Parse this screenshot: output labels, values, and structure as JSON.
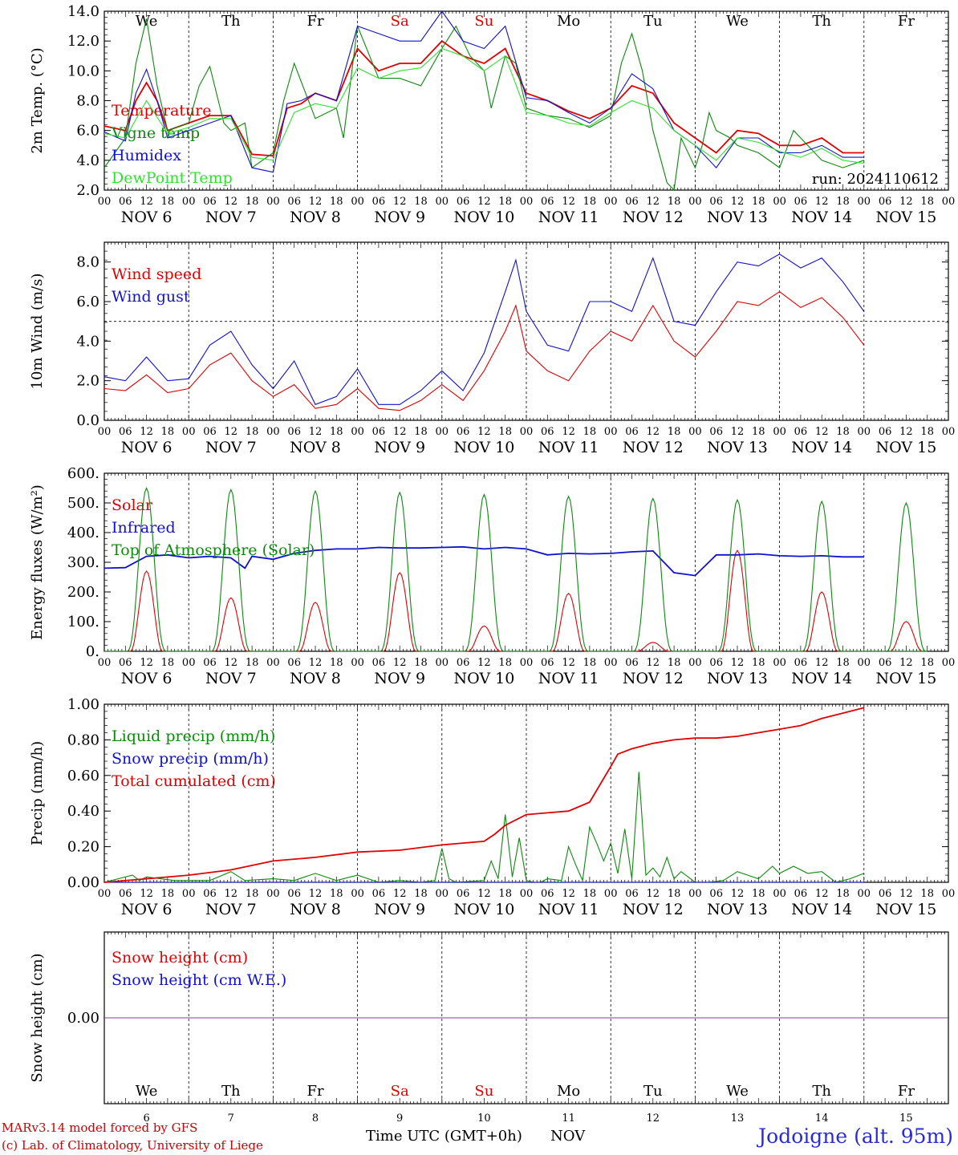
{
  "run_label": "run: 2024110612",
  "days": {
    "weekday_labels": [
      "We",
      "Th",
      "Fr",
      "Sa",
      "Su",
      "Mo",
      "Tu",
      "We",
      "Th",
      "Fr"
    ],
    "weekend_color": "#e00000",
    "date_labels": [
      "NOV 6",
      "NOV 7",
      "NOV 8",
      "NOV 9",
      "NOV 10",
      "NOV 11",
      "NOV 12",
      "NOV 13",
      "NOV 14",
      "NOV 15"
    ],
    "day_numbers": [
      "6",
      "7",
      "8",
      "9",
      "10",
      "11",
      "12",
      "13",
      "14",
      "15"
    ],
    "hour_ticks": [
      "00",
      "06",
      "12",
      "18"
    ]
  },
  "footer": {
    "model_line": "MARv3.14 model forced by GFS",
    "copyright_line": "(c) Lab. of Climatology, University of Liege",
    "xlabel": "Time UTC (GMT+0h)",
    "month": "NOV",
    "station": "Jodoigne (alt. 95m)"
  },
  "chart_data": [
    {
      "type": "line",
      "ylabel": "2m Temp. (°C)",
      "ylim": [
        2.0,
        14.0
      ],
      "yticks": [
        "2.0",
        "4.0",
        "6.0",
        "8.0",
        "10.0",
        "12.0",
        "14.0"
      ],
      "x_unit": "hours since Nov 6 00 UTC",
      "series": [
        {
          "name": "Temperature",
          "color": "#e00000",
          "x": [
            0,
            6,
            9,
            12,
            15,
            18,
            24,
            30,
            36,
            42,
            48,
            52,
            56,
            60,
            66,
            72,
            78,
            84,
            90,
            96,
            102,
            108,
            114,
            120,
            126,
            132,
            138,
            144,
            150,
            156,
            162,
            168,
            174,
            180,
            186,
            192,
            198,
            204,
            210,
            216
          ],
          "y": [
            6.3,
            6.0,
            8.0,
            9.2,
            8.0,
            6.0,
            6.5,
            7.0,
            7.0,
            4.4,
            4.3,
            7.5,
            7.8,
            8.5,
            8.0,
            11.5,
            10.0,
            10.5,
            10.5,
            12.0,
            11.0,
            10.5,
            11.5,
            8.5,
            8.0,
            7.3,
            6.8,
            7.5,
            9.0,
            8.5,
            6.5,
            5.5,
            4.5,
            6.0,
            5.8,
            5.0,
            5.0,
            5.5,
            4.5,
            4.5
          ]
        },
        {
          "name": "Vigne temp",
          "color": "#0a8a0a",
          "x": [
            0,
            6,
            9,
            12,
            15,
            18,
            24,
            27,
            30,
            34,
            36,
            40,
            42,
            48,
            51,
            54,
            60,
            66,
            68,
            72,
            78,
            84,
            90,
            96,
            100,
            104,
            108,
            110,
            114,
            117,
            120,
            126,
            132,
            138,
            144,
            147,
            150,
            153,
            156,
            160,
            162,
            164,
            168,
            170,
            172,
            174,
            178,
            180,
            186,
            192,
            196,
            198,
            204,
            210,
            216
          ],
          "y": [
            3.5,
            5.5,
            10.5,
            13.5,
            9.0,
            6.0,
            6.5,
            9.0,
            10.3,
            6.5,
            6.0,
            6.5,
            3.5,
            4.5,
            8.0,
            10.5,
            6.8,
            7.5,
            5.5,
            13.0,
            9.5,
            9.5,
            9.0,
            11.5,
            13.0,
            11.0,
            10.0,
            7.5,
            11.0,
            10.5,
            7.5,
            7.0,
            6.8,
            6.2,
            7.0,
            10.5,
            12.5,
            10.0,
            6.0,
            2.5,
            2.0,
            5.5,
            3.5,
            5.0,
            7.2,
            6.0,
            5.5,
            5.0,
            4.5,
            3.5,
            6.0,
            5.5,
            4.0,
            3.5,
            4.0
          ]
        },
        {
          "name": "Humidex",
          "color": "#1010d0",
          "x": [
            0,
            6,
            9,
            12,
            15,
            18,
            24,
            30,
            36,
            42,
            48,
            52,
            56,
            60,
            66,
            72,
            78,
            84,
            90,
            96,
            102,
            108,
            114,
            120,
            126,
            132,
            138,
            144,
            150,
            156,
            162,
            168,
            174,
            180,
            186,
            192,
            198,
            204,
            210,
            216
          ],
          "y": [
            5.9,
            5.3,
            8.5,
            10.1,
            8.0,
            5.5,
            6.0,
            6.5,
            7.0,
            3.5,
            3.2,
            7.8,
            8.0,
            8.5,
            8.0,
            13.0,
            12.5,
            12.0,
            12.0,
            14.0,
            12.0,
            11.5,
            13.0,
            8.2,
            8.0,
            7.2,
            6.5,
            7.5,
            9.8,
            8.8,
            6.0,
            5.0,
            3.5,
            5.5,
            5.5,
            4.5,
            4.5,
            5.0,
            4.2,
            4.2
          ]
        },
        {
          "name": "DewPoint Temp",
          "color": "#30e030",
          "x": [
            0,
            6,
            12,
            18,
            24,
            30,
            36,
            42,
            48,
            54,
            60,
            66,
            72,
            78,
            84,
            90,
            96,
            102,
            108,
            114,
            120,
            126,
            132,
            138,
            144,
            150,
            156,
            162,
            168,
            174,
            180,
            186,
            192,
            198,
            204,
            210,
            216
          ],
          "y": [
            5.8,
            5.5,
            8.0,
            5.8,
            6.2,
            6.8,
            6.8,
            4.2,
            4.0,
            7.2,
            7.8,
            7.5,
            10.2,
            9.5,
            10.0,
            10.2,
            11.5,
            11.0,
            10.0,
            11.0,
            7.2,
            7.0,
            6.5,
            6.3,
            7.2,
            8.0,
            7.5,
            6.0,
            5.0,
            4.0,
            5.5,
            5.2,
            4.6,
            4.2,
            4.8,
            4.0,
            3.8
          ]
        }
      ]
    },
    {
      "type": "line",
      "ylabel": "10m Wind (m/s)",
      "ylim": [
        0.0,
        9.0
      ],
      "yticks": [
        "0.0",
        "2.0",
        "4.0",
        "6.0",
        "8.0"
      ],
      "reference_line": 5.0,
      "series": [
        {
          "name": "Wind speed",
          "color": "#e00000",
          "x": [
            0,
            6,
            12,
            18,
            24,
            30,
            36,
            42,
            48,
            54,
            60,
            66,
            72,
            78,
            84,
            90,
            96,
            102,
            108,
            114,
            117,
            120,
            126,
            132,
            138,
            144,
            150,
            156,
            162,
            168,
            174,
            180,
            186,
            192,
            198,
            204,
            210,
            216
          ],
          "y": [
            1.6,
            1.5,
            2.3,
            1.4,
            1.6,
            2.8,
            3.4,
            2.0,
            1.2,
            1.8,
            0.6,
            0.8,
            1.6,
            0.6,
            0.5,
            1.0,
            1.8,
            1.0,
            2.5,
            4.5,
            5.8,
            3.5,
            2.5,
            2.0,
            3.5,
            4.5,
            4.0,
            5.8,
            4.0,
            3.2,
            4.5,
            6.0,
            5.8,
            6.5,
            5.7,
            6.2,
            5.2,
            3.8
          ]
        },
        {
          "name": "Wind gust",
          "color": "#1010d0",
          "x": [
            0,
            6,
            12,
            18,
            24,
            30,
            36,
            42,
            48,
            54,
            60,
            66,
            72,
            78,
            84,
            90,
            96,
            102,
            108,
            114,
            117,
            120,
            126,
            132,
            138,
            144,
            150,
            156,
            162,
            168,
            174,
            180,
            186,
            192,
            198,
            204,
            210,
            216
          ],
          "y": [
            2.2,
            2.0,
            3.2,
            2.0,
            2.1,
            3.8,
            4.5,
            2.8,
            1.6,
            3.0,
            0.8,
            1.2,
            2.6,
            0.8,
            0.8,
            1.5,
            2.5,
            1.5,
            3.4,
            6.5,
            8.1,
            5.5,
            3.8,
            3.5,
            6.0,
            6.0,
            5.5,
            8.2,
            5.0,
            4.8,
            6.5,
            8.0,
            7.8,
            8.4,
            7.7,
            8.2,
            7.0,
            5.5
          ]
        }
      ]
    },
    {
      "type": "line",
      "ylabel": "Energy fluxes (W/m²)",
      "ylim": [
        0,
        600
      ],
      "yticks": [
        "0.",
        "100.",
        "200.",
        "300.",
        "400.",
        "500.",
        "600."
      ],
      "series": [
        {
          "name": "Solar",
          "color": "#e00000",
          "peaks": [
            270,
            180,
            165,
            265,
            85,
            195,
            30,
            340,
            200,
            100
          ]
        },
        {
          "name": "Infrared",
          "color": "#1010d0",
          "x": [
            0,
            6,
            12,
            18,
            24,
            30,
            36,
            40,
            42,
            48,
            54,
            60,
            66,
            72,
            78,
            84,
            90,
            96,
            102,
            108,
            114,
            120,
            126,
            132,
            138,
            144,
            150,
            156,
            162,
            168,
            174,
            180,
            186,
            192,
            198,
            204,
            210,
            216
          ],
          "y": [
            280,
            282,
            320,
            325,
            315,
            320,
            315,
            280,
            320,
            310,
            330,
            340,
            345,
            345,
            350,
            348,
            348,
            350,
            352,
            345,
            350,
            345,
            325,
            330,
            328,
            330,
            335,
            338,
            265,
            255,
            325,
            325,
            328,
            322,
            320,
            322,
            318,
            318
          ]
        },
        {
          "name": "Top of Atmosphere (Solar)",
          "color": "#0a8a0a",
          "peaks": [
            550,
            545,
            540,
            535,
            528,
            522,
            515,
            510,
            505,
            500
          ]
        }
      ]
    },
    {
      "type": "line",
      "ylabel": "Precip (mm/h)",
      "ylim": [
        0.0,
        1.0
      ],
      "yticks": [
        "0.00",
        "0.20",
        "0.40",
        "0.60",
        "0.80",
        "1.00"
      ],
      "series": [
        {
          "name": "Liquid precip (mm/h)",
          "color": "#0a8a0a",
          "x": [
            0,
            8,
            10,
            12,
            20,
            30,
            36,
            40,
            48,
            54,
            60,
            66,
            72,
            78,
            84,
            90,
            94,
            96,
            98,
            100,
            108,
            110,
            112,
            114,
            116,
            118,
            120,
            122,
            124,
            126,
            130,
            132,
            134,
            136,
            138,
            140,
            142,
            144,
            146,
            148,
            150,
            152,
            154,
            156,
            158,
            160,
            162,
            164,
            168,
            172,
            176,
            180,
            186,
            190,
            192,
            196,
            200,
            204,
            208,
            212,
            216
          ],
          "y": [
            0.0,
            0.04,
            0.01,
            0.03,
            0.01,
            0.01,
            0.06,
            0.01,
            0.02,
            0.01,
            0.05,
            0.01,
            0.04,
            0.0,
            0.01,
            0.0,
            0.01,
            0.19,
            0.02,
            0.0,
            0.01,
            0.12,
            0.02,
            0.38,
            0.03,
            0.25,
            0.01,
            0.0,
            0.0,
            0.02,
            0.01,
            0.2,
            0.1,
            0.01,
            0.31,
            0.22,
            0.12,
            0.22,
            0.05,
            0.3,
            0.02,
            0.62,
            0.04,
            0.08,
            0.03,
            0.14,
            0.02,
            0.06,
            0.0,
            0.0,
            0.01,
            0.06,
            0.02,
            0.09,
            0.05,
            0.09,
            0.05,
            0.06,
            0.0,
            0.02,
            0.05
          ]
        },
        {
          "name": "Snow precip (mm/h)",
          "color": "#1010d0",
          "x": [
            0,
            216
          ],
          "y": [
            0.0,
            0.0
          ]
        },
        {
          "name": "Total cumulated (cm)",
          "color": "#e00000",
          "x": [
            0,
            12,
            24,
            36,
            48,
            60,
            72,
            84,
            96,
            108,
            111,
            114,
            120,
            126,
            132,
            138,
            144,
            146,
            150,
            156,
            162,
            168,
            174,
            180,
            186,
            192,
            198,
            204,
            210,
            216
          ],
          "y": [
            0.0,
            0.02,
            0.04,
            0.07,
            0.12,
            0.14,
            0.17,
            0.18,
            0.21,
            0.23,
            0.27,
            0.32,
            0.38,
            0.39,
            0.4,
            0.45,
            0.65,
            0.72,
            0.75,
            0.78,
            0.8,
            0.81,
            0.81,
            0.82,
            0.84,
            0.86,
            0.88,
            0.92,
            0.95,
            0.98
          ]
        }
      ]
    },
    {
      "type": "line",
      "ylabel": "Snow height (cm)",
      "yticks": [
        "0.00"
      ],
      "series": [
        {
          "name": "Snow height (cm)",
          "color": "#e00000",
          "x": [
            0,
            216
          ],
          "y": [
            0.0,
            0.0
          ]
        },
        {
          "name": "Snow height (cm W.E.)",
          "color": "#1010d0",
          "x": [
            0,
            216
          ],
          "y": [
            0.0,
            0.0
          ]
        }
      ]
    }
  ]
}
